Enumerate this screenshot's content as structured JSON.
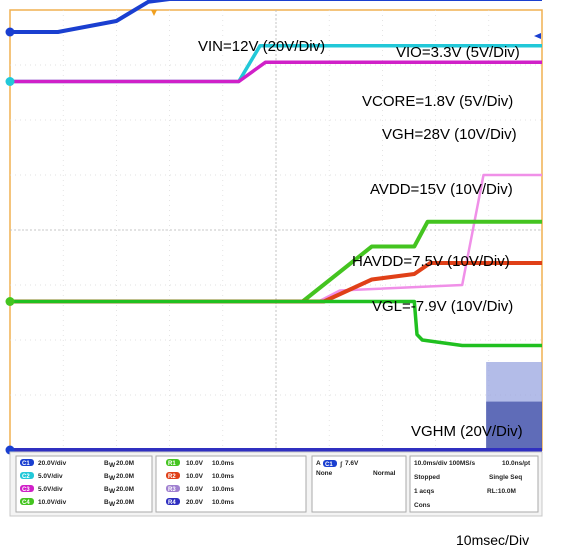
{
  "chart_data": {
    "type": "line",
    "title": "",
    "xlabel": "",
    "ylabel": "",
    "time_scale_label": "10msec/Div",
    "x_units": "div",
    "x_range": [
      0,
      10
    ],
    "y_units": "div",
    "y_range": [
      0,
      8
    ],
    "grid": true,
    "series": [
      {
        "name": "VIN=12V (20V/Div)",
        "color": "#1a3fd0",
        "x": [
          0,
          0.9,
          2.0,
          2.6,
          3.0,
          10
        ],
        "y": [
          7.6,
          7.6,
          7.8,
          8.15,
          8.2,
          8.2
        ]
      },
      {
        "name": "VIO=3.3V (5V/Div)",
        "color": "#22c8d8",
        "x": [
          0,
          4.3,
          4.7,
          10
        ],
        "y": [
          6.7,
          6.7,
          7.35,
          7.35
        ]
      },
      {
        "name": "VCORE=1.8V (5V/Div)",
        "color": "#d020c8",
        "x": [
          0,
          4.3,
          4.8,
          10
        ],
        "y": [
          6.7,
          6.7,
          7.05,
          7.05
        ]
      },
      {
        "name": "VGH=28V (10V/Div)",
        "color": "#f090e8",
        "x": [
          0,
          5.8,
          6.2,
          8.5,
          8.9,
          10
        ],
        "y": [
          2.7,
          2.7,
          2.9,
          3.0,
          5.0,
          5.0
        ]
      },
      {
        "name": "AVDD=15V (10V/Div)",
        "color": "#44c420",
        "x": [
          0,
          5.5,
          6.8,
          7.6,
          7.85,
          10
        ],
        "y": [
          2.7,
          2.7,
          3.7,
          3.7,
          4.15,
          4.15
        ]
      },
      {
        "name": "HAVDD=7.5V (10V/Div)",
        "color": "#e04018",
        "x": [
          0,
          5.9,
          6.8,
          7.6,
          7.9,
          10
        ],
        "y": [
          2.7,
          2.7,
          3.1,
          3.2,
          3.4,
          3.4
        ]
      },
      {
        "name": "VGL=-7.9V (10V/Div)",
        "color": "#20c020",
        "x": [
          0,
          7.6,
          7.65,
          7.75,
          8.5,
          10
        ],
        "y": [
          2.7,
          2.7,
          2.1,
          2.0,
          1.9,
          1.9
        ]
      },
      {
        "name": "VGHM (20V/Div)",
        "color": "#3030c0",
        "x": [
          0,
          8.95,
          10
        ],
        "y": [
          0.0,
          0.0,
          0.0
        ],
        "burst": {
          "start_x": 8.95,
          "low": -0.2,
          "high": 1.6
        }
      }
    ]
  },
  "status_panel": {
    "channels": [
      {
        "tag": "C1",
        "scale": "20.0V/div",
        "bw": "20.0M",
        "color": "#1a3fd0"
      },
      {
        "tag": "C2",
        "scale": "5.0V/div",
        "bw": "20.0M",
        "color": "#22c8d8"
      },
      {
        "tag": "C3",
        "scale": "5.0V/div",
        "bw": "20.0M",
        "color": "#d020c8"
      },
      {
        "tag": "C4",
        "scale": "10.0V/div",
        "bw": "20.0M",
        "color": "#44c420"
      }
    ],
    "bw_prefix": "B",
    "bw_sub": "W",
    "refs": [
      {
        "tag": "R1",
        "volt": "10.0V",
        "time": "10.0ms",
        "color": "#44c420"
      },
      {
        "tag": "R2",
        "volt": "10.0V",
        "time": "10.0ms",
        "color": "#e04018"
      },
      {
        "tag": "R3",
        "volt": "10.0V",
        "time": "10.0ms",
        "color": "#a080d0"
      },
      {
        "tag": "R4",
        "volt": "20.0V",
        "time": "10.0ms",
        "color": "#3030c0"
      }
    ],
    "trigger": {
      "channel": "A",
      "src": "C1",
      "level": "7.6V",
      "coupling": "None",
      "mode": "Normal"
    },
    "acq": {
      "line1": "10.0ms/div 100MS/s",
      "line1_right": "10.0ns/pt",
      "line2": "Stopped",
      "line2_right": "Single Seq",
      "line3": "1 acqs",
      "line3_right": "RL:10.0M",
      "line4": "Cons"
    }
  }
}
